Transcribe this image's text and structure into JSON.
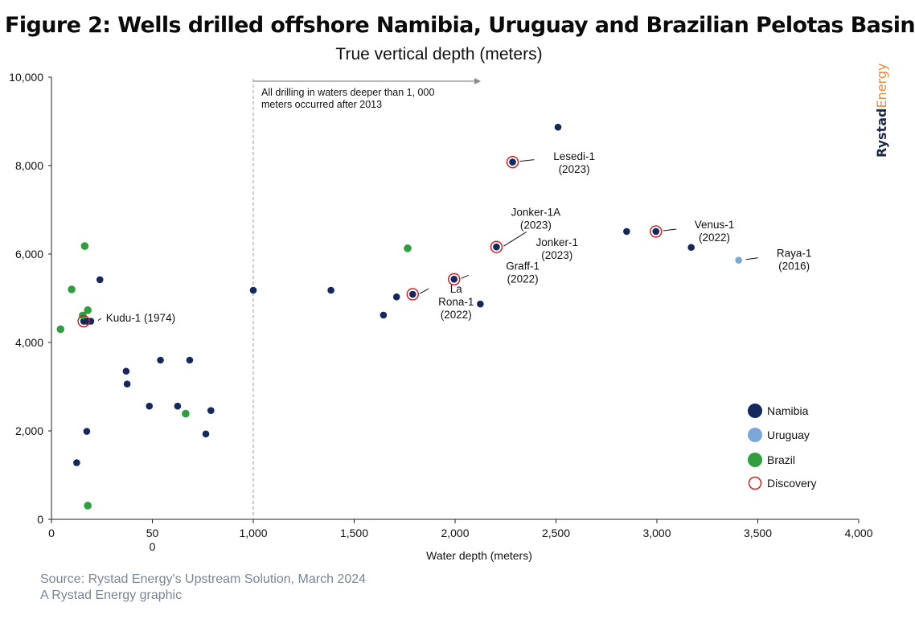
{
  "header": {
    "title": "Figure 2: Wells drilled offshore Namibia, Uruguay and Brazilian Pelotas Basin",
    "subtitle": "True vertical depth (meters)"
  },
  "brand": {
    "part1": "Rystad",
    "part2": "Energy"
  },
  "footer": {
    "source": "Source: Rystad Energy's Upstream Solution, March 2024",
    "credit": "A Rystad Energy graphic"
  },
  "colors": {
    "namibia": "#13285c",
    "uruguay": "#7aa7d8",
    "brazil": "#2e9e3e",
    "discovery": "#cc2229",
    "axis": "#222222",
    "annotation_line": "#8a8a8a"
  },
  "chart_data": {
    "type": "scatter",
    "title": "True vertical depth (meters)",
    "xlabel": "Water depth (meters)",
    "ylabel": "",
    "xlim": [
      0,
      4000
    ],
    "ylim": [
      0,
      10000
    ],
    "x_ticks": [
      "0",
      "50\n0",
      "1,000",
      "1,500",
      "2,000",
      "2,500",
      "3,000",
      "3,500",
      "4,000"
    ],
    "x_tick_values": [
      0,
      500,
      1000,
      1500,
      2000,
      2500,
      3000,
      3500,
      4000
    ],
    "y_ticks": [
      "0",
      "2,000",
      "4,000",
      "6,000",
      "8,000",
      "10,000"
    ],
    "y_tick_values": [
      0,
      2000,
      4000,
      6000,
      8000,
      10000
    ],
    "grid": false,
    "legend_position": "right",
    "legend": [
      {
        "key": "namibia",
        "label": "Namibia"
      },
      {
        "key": "uruguay",
        "label": "Uruguay"
      },
      {
        "key": "brazil",
        "label": "Brazil"
      },
      {
        "key": "discovery",
        "label": "Discovery"
      }
    ],
    "series": [
      {
        "name": "Namibia",
        "key": "namibia",
        "points": [
          [
            160,
            4480
          ],
          [
            175,
            4480
          ],
          [
            195,
            4480
          ],
          [
            240,
            5420
          ],
          [
            370,
            3350
          ],
          [
            375,
            3060
          ],
          [
            175,
            1990
          ],
          [
            125,
            1280
          ],
          [
            485,
            2560
          ],
          [
            540,
            3600
          ],
          [
            625,
            2560
          ],
          [
            685,
            3600
          ],
          [
            765,
            1930
          ],
          [
            790,
            2460
          ],
          [
            1000,
            5180
          ],
          [
            1385,
            5180
          ],
          [
            1645,
            4620
          ],
          [
            1710,
            5030
          ],
          [
            1790,
            5090
          ],
          [
            1995,
            5430
          ],
          [
            2125,
            4870
          ],
          [
            2205,
            6160
          ],
          [
            2285,
            8080
          ],
          [
            2510,
            8870
          ],
          [
            2850,
            6510
          ],
          [
            2995,
            6510
          ],
          [
            3170,
            6150
          ]
        ]
      },
      {
        "name": "Uruguay",
        "key": "uruguay",
        "points": [
          [
            3405,
            5860
          ]
        ]
      },
      {
        "name": "Brazil",
        "key": "brazil",
        "points": [
          [
            165,
            6180
          ],
          [
            100,
            5200
          ],
          [
            180,
            4730
          ],
          [
            155,
            4610
          ],
          [
            45,
            4300
          ],
          [
            665,
            2390
          ],
          [
            180,
            310
          ],
          [
            1765,
            6130
          ]
        ]
      },
      {
        "name": "Discovery",
        "key": "discovery",
        "points": [
          [
            160,
            4480
          ],
          [
            1790,
            5090
          ],
          [
            1995,
            5430
          ],
          [
            2205,
            6160
          ],
          [
            2285,
            8080
          ],
          [
            2995,
            6510
          ]
        ]
      }
    ],
    "annotations": [
      {
        "text": "Kudu-1 (1974)",
        "lines": [
          "Kudu-1 (1974)"
        ],
        "point": [
          195,
          4480
        ],
        "label_at": [
          270,
          4470
        ],
        "anchor": "start",
        "leader": true
      },
      {
        "text": "Lesedi-1 (2023)",
        "lines": [
          "Lesedi-1",
          "(2023)"
        ],
        "point": [
          2285,
          8080
        ],
        "label_at": [
          2590,
          8130
        ],
        "anchor": "middle",
        "leader": true
      },
      {
        "text": "Jonker-1A (2023)",
        "lines": [
          "Jonker-1A",
          "(2023)"
        ],
        "point": [
          2205,
          6160
        ],
        "label_at": [
          2400,
          6860
        ],
        "anchor": "middle",
        "leader": true
      },
      {
        "text": "Jonker-1 (2023)",
        "lines": [
          "Jonker-1",
          "(2023)"
        ],
        "point": [
          2205,
          6160
        ],
        "label_at": [
          2505,
          6180
        ],
        "anchor": "middle",
        "leader": false
      },
      {
        "text": "Graff-1 (2022)",
        "lines": [
          "Graff-1",
          "(2022)"
        ],
        "point": [
          1995,
          5430
        ],
        "label_at": [
          2335,
          5650
        ],
        "anchor": "middle",
        "leader": true
      },
      {
        "text": "La Rona-1 (2022)",
        "lines": [
          "La",
          "Rona-1",
          "(2022)"
        ],
        "point": [
          1790,
          5090
        ],
        "label_at": [
          2005,
          5130
        ],
        "anchor": "middle",
        "leader": true
      },
      {
        "text": "Venus-1 (2022)",
        "lines": [
          "Venus-1",
          "(2022)"
        ],
        "point": [
          2995,
          6510
        ],
        "label_at": [
          3285,
          6580
        ],
        "anchor": "middle",
        "leader": true
      },
      {
        "text": "Raya-1 (2016)",
        "lines": [
          "Raya-1",
          "(2016)"
        ],
        "point": [
          3405,
          5860
        ],
        "label_at": [
          3680,
          5940
        ],
        "anchor": "middle",
        "leader": true
      }
    ],
    "threshold": {
      "x": 1000,
      "lines": [
        "All drilling in waters deeper than 1, 000",
        "meters occurred after 2013"
      ]
    }
  }
}
